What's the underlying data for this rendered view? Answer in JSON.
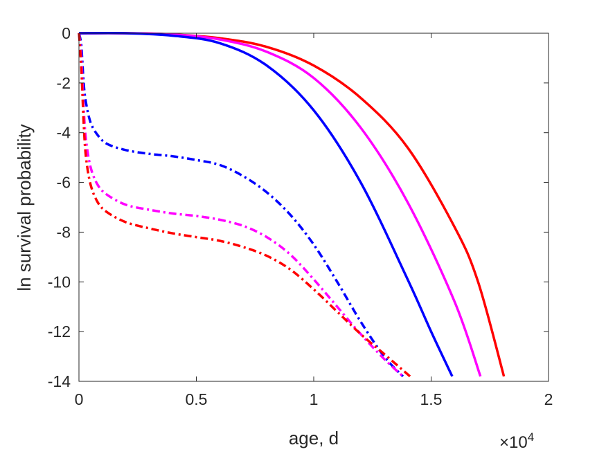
{
  "chart_data": {
    "type": "line",
    "xlabel": "age, d",
    "ylabel": "ln survival probability",
    "x_exponent_label": "×10",
    "x_exponent_power": "4",
    "xlim": [
      0,
      20000
    ],
    "ylim": [
      -14,
      0
    ],
    "xticks": [
      0,
      5000,
      10000,
      15000,
      20000
    ],
    "xtick_labels": [
      "0",
      "0.5",
      "1",
      "1.5",
      "2"
    ],
    "yticks": [
      0,
      -2,
      -4,
      -6,
      -8,
      -10,
      -12,
      -14
    ],
    "ytick_labels": [
      "0",
      "-2",
      "-4",
      "-6",
      "-8",
      "-10",
      "-12",
      "-14"
    ],
    "grid": false,
    "box": true,
    "series": [
      {
        "color": "#ff0000",
        "line_style": "solid",
        "points": [
          [
            0,
            0
          ],
          [
            2000,
            0
          ],
          [
            4000,
            -0.05
          ],
          [
            6000,
            -0.2
          ],
          [
            8000,
            -0.55
          ],
          [
            10000,
            -1.3
          ],
          [
            12000,
            -2.6
          ],
          [
            14000,
            -4.6
          ],
          [
            16000,
            -7.8
          ],
          [
            17000,
            -10.0
          ],
          [
            18100,
            -13.8
          ]
        ]
      },
      {
        "color": "#ff00ff",
        "line_style": "solid",
        "points": [
          [
            0,
            0
          ],
          [
            2000,
            0
          ],
          [
            4000,
            -0.05
          ],
          [
            6000,
            -0.25
          ],
          [
            8000,
            -0.75
          ],
          [
            10000,
            -1.8
          ],
          [
            12000,
            -3.8
          ],
          [
            14000,
            -6.8
          ],
          [
            16000,
            -10.8
          ],
          [
            17100,
            -13.8
          ]
        ]
      },
      {
        "color": "#0000ff",
        "line_style": "solid",
        "points": [
          [
            0,
            0
          ],
          [
            2000,
            0
          ],
          [
            4000,
            -0.1
          ],
          [
            6000,
            -0.4
          ],
          [
            8000,
            -1.3
          ],
          [
            10000,
            -3.1
          ],
          [
            12000,
            -6.0
          ],
          [
            14000,
            -9.9
          ],
          [
            15000,
            -12.0
          ],
          [
            15900,
            -13.8
          ]
        ]
      },
      {
        "color": "#0000ff",
        "line_style": "dashdot",
        "points": [
          [
            0,
            0
          ],
          [
            100,
            -0.5
          ],
          [
            200,
            -2.0
          ],
          [
            300,
            -2.8
          ],
          [
            500,
            -3.6
          ],
          [
            800,
            -4.1
          ],
          [
            1200,
            -4.45
          ],
          [
            2000,
            -4.7
          ],
          [
            3000,
            -4.85
          ],
          [
            4000,
            -4.95
          ],
          [
            5000,
            -5.1
          ],
          [
            6000,
            -5.3
          ],
          [
            7000,
            -5.75
          ],
          [
            8000,
            -6.4
          ],
          [
            9000,
            -7.3
          ],
          [
            10000,
            -8.5
          ],
          [
            11000,
            -10.0
          ],
          [
            12000,
            -11.6
          ],
          [
            13000,
            -13.0
          ],
          [
            13800,
            -13.8
          ]
        ]
      },
      {
        "color": "#ff00ff",
        "line_style": "dashdot",
        "points": [
          [
            0,
            0
          ],
          [
            100,
            -1.0
          ],
          [
            200,
            -3.0
          ],
          [
            300,
            -4.3
          ],
          [
            500,
            -5.4
          ],
          [
            800,
            -6.1
          ],
          [
            1200,
            -6.5
          ],
          [
            2000,
            -6.9
          ],
          [
            3000,
            -7.1
          ],
          [
            4000,
            -7.25
          ],
          [
            5000,
            -7.35
          ],
          [
            6000,
            -7.5
          ],
          [
            7000,
            -7.75
          ],
          [
            8000,
            -8.2
          ],
          [
            9000,
            -8.9
          ],
          [
            10000,
            -9.9
          ],
          [
            11000,
            -11.0
          ],
          [
            12000,
            -12.1
          ],
          [
            13000,
            -13.1
          ],
          [
            13800,
            -13.8
          ]
        ]
      },
      {
        "color": "#ff0000",
        "line_style": "dashdot",
        "points": [
          [
            0,
            0
          ],
          [
            100,
            -1.4
          ],
          [
            200,
            -3.6
          ],
          [
            300,
            -5.0
          ],
          [
            500,
            -6.1
          ],
          [
            800,
            -6.8
          ],
          [
            1200,
            -7.2
          ],
          [
            2000,
            -7.6
          ],
          [
            3000,
            -7.85
          ],
          [
            4000,
            -8.05
          ],
          [
            5000,
            -8.2
          ],
          [
            6000,
            -8.35
          ],
          [
            7000,
            -8.6
          ],
          [
            8000,
            -8.95
          ],
          [
            9000,
            -9.5
          ],
          [
            10000,
            -10.3
          ],
          [
            11000,
            -11.2
          ],
          [
            12000,
            -12.1
          ],
          [
            13000,
            -12.9
          ],
          [
            14100,
            -13.8
          ]
        ]
      }
    ]
  }
}
